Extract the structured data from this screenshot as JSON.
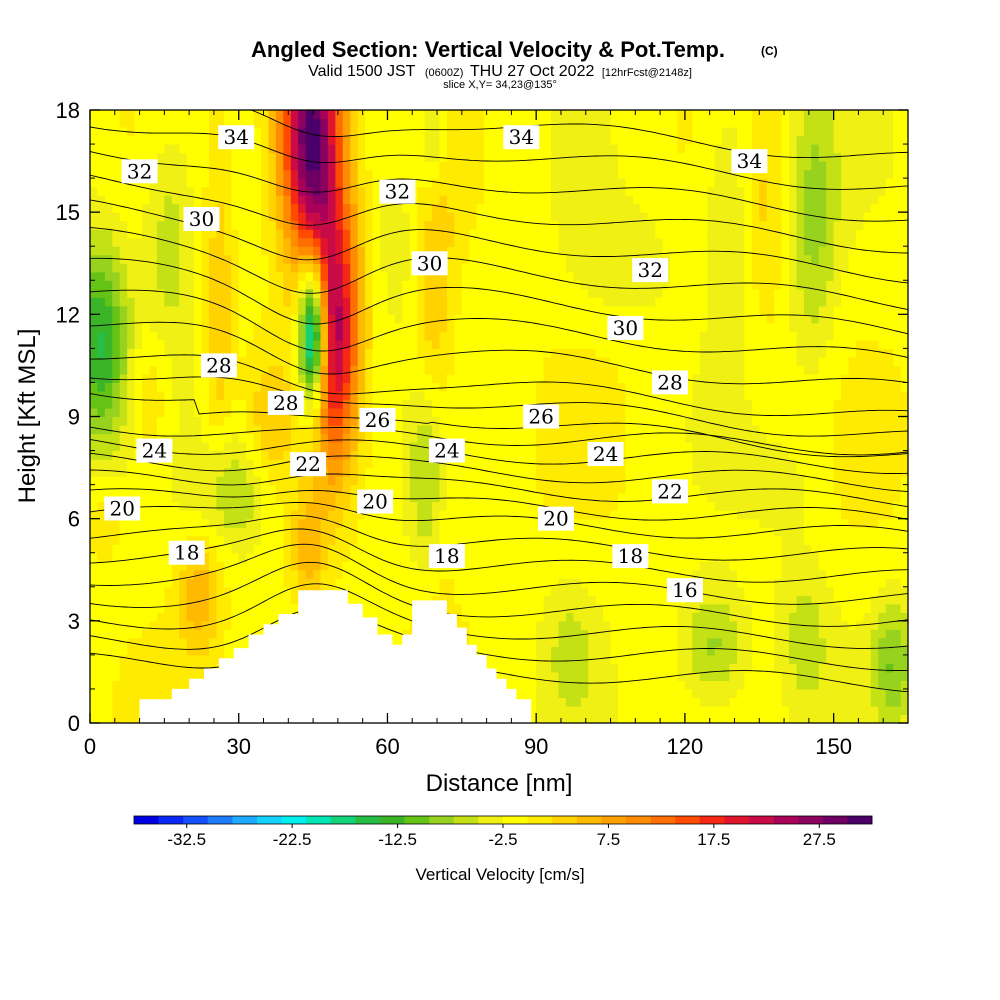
{
  "chart_data": {
    "type": "heatmap",
    "title": "Angled Section: Vertical Velocity & Pot.Temp.",
    "title_mark": "(C)",
    "subtitle": {
      "valid": "Valid 1500 JST",
      "utc": "(0600Z)",
      "date": "THU 27 Oct 2022",
      "forecast": "[12hrFcst@2148z]"
    },
    "slice_label": "slice X,Y= 34,23@135°",
    "xlabel": "Distance [nm]",
    "ylabel": "Height [Kft MSL]",
    "xlim": [
      0,
      165
    ],
    "ylim": [
      0,
      18
    ],
    "xticks": [
      "0",
      "30",
      "60",
      "90",
      "120",
      "150"
    ],
    "yticks": [
      "0",
      "3",
      "6",
      "9",
      "12",
      "15",
      "18"
    ],
    "colorbar": {
      "label": "Vertical Velocity [cm/s]",
      "tick_labels": [
        "-32.5",
        "-22.5",
        "-12.5",
        "-2.5",
        "7.5",
        "17.5",
        "27.5"
      ],
      "min": -37.5,
      "max": 32.5,
      "step": 2.5,
      "colors": [
        "#0000e6",
        "#0a28f5",
        "#1450ff",
        "#1e7dff",
        "#1eaaff",
        "#14d2ff",
        "#00f0f0",
        "#00e6b4",
        "#14d278",
        "#28be46",
        "#3cb428",
        "#64c314",
        "#96d21e",
        "#c3e114",
        "#f0f014",
        "#ffff00",
        "#ffeb00",
        "#ffd200",
        "#ffb900",
        "#ffa000",
        "#ff8c00",
        "#ff6e00",
        "#ff4b00",
        "#f52814",
        "#e1142d",
        "#c80a46",
        "#aa005a",
        "#8c005f",
        "#6e0064",
        "#4b0069"
      ]
    },
    "theta_contour_labels": [
      {
        "text": "34",
        "x": 29.5,
        "y": 17.2
      },
      {
        "text": "34",
        "x": 87,
        "y": 17.2
      },
      {
        "text": "34",
        "x": 133,
        "y": 16.5
      },
      {
        "text": "32",
        "x": 10,
        "y": 16.2
      },
      {
        "text": "32",
        "x": 62,
        "y": 15.6
      },
      {
        "text": "32",
        "x": 113,
        "y": 13.3
      },
      {
        "text": "30",
        "x": 22.5,
        "y": 14.8
      },
      {
        "text": "30",
        "x": 68.5,
        "y": 13.5
      },
      {
        "text": "30",
        "x": 108,
        "y": 11.6
      },
      {
        "text": "28",
        "x": 26,
        "y": 10.5
      },
      {
        "text": "28",
        "x": 39.5,
        "y": 9.4
      },
      {
        "text": "28",
        "x": 117,
        "y": 10.0
      },
      {
        "text": "26",
        "x": 58,
        "y": 8.9
      },
      {
        "text": "26",
        "x": 91,
        "y": 9.0
      },
      {
        "text": "24",
        "x": 13,
        "y": 8.0
      },
      {
        "text": "24",
        "x": 72,
        "y": 8.0
      },
      {
        "text": "24",
        "x": 104,
        "y": 7.9
      },
      {
        "text": "22",
        "x": 44,
        "y": 7.6
      },
      {
        "text": "22",
        "x": 117,
        "y": 6.8
      },
      {
        "text": "20",
        "x": 6.5,
        "y": 6.3
      },
      {
        "text": "20",
        "x": 57.5,
        "y": 6.5
      },
      {
        "text": "20",
        "x": 94,
        "y": 6.0
      },
      {
        "text": "18",
        "x": 19.5,
        "y": 5.0
      },
      {
        "text": "18",
        "x": 72,
        "y": 4.9
      },
      {
        "text": "18",
        "x": 109,
        "y": 4.9
      },
      {
        "text": "16",
        "x": 120,
        "y": 3.9
      }
    ],
    "terrain": [
      [
        0,
        0
      ],
      [
        10,
        0
      ],
      [
        10,
        0.7
      ],
      [
        16.5,
        0.7
      ],
      [
        16.5,
        1
      ],
      [
        20,
        1
      ],
      [
        20,
        1.3
      ],
      [
        23,
        1.3
      ],
      [
        23,
        1.6
      ],
      [
        26,
        1.6
      ],
      [
        26,
        1.9
      ],
      [
        29,
        1.9
      ],
      [
        29,
        2.2
      ],
      [
        32,
        2.2
      ],
      [
        32,
        2.6
      ],
      [
        35,
        2.6
      ],
      [
        35,
        2.9
      ],
      [
        38,
        2.9
      ],
      [
        38,
        3.2
      ],
      [
        42,
        3.2
      ],
      [
        42,
        3.9
      ],
      [
        52,
        3.9
      ],
      [
        52,
        3.5
      ],
      [
        55,
        3.5
      ],
      [
        55,
        3.1
      ],
      [
        58,
        3.1
      ],
      [
        58,
        2.6
      ],
      [
        61,
        2.6
      ],
      [
        61,
        2.3
      ],
      [
        63,
        2.3
      ],
      [
        63,
        2.6
      ],
      [
        65,
        2.6
      ],
      [
        65,
        3.6
      ],
      [
        72,
        3.6
      ],
      [
        72,
        3.2
      ],
      [
        74,
        3.2
      ],
      [
        74,
        2.8
      ],
      [
        76,
        2.8
      ],
      [
        76,
        2.3
      ],
      [
        78,
        2.3
      ],
      [
        78,
        2.0
      ],
      [
        80,
        2.0
      ],
      [
        80,
        1.6
      ],
      [
        82,
        1.6
      ],
      [
        82,
        1.3
      ],
      [
        84,
        1.3
      ],
      [
        84,
        1.0
      ],
      [
        86,
        1.0
      ],
      [
        86,
        0.7
      ],
      [
        89,
        0.7
      ],
      [
        89,
        0
      ],
      [
        0,
        0
      ]
    ],
    "w_field": {
      "background": 1.5,
      "features": [
        {
          "x": 45,
          "y": 11.5,
          "sx": 2.0,
          "sy": 1.6,
          "w": -34
        },
        {
          "x": 44,
          "y": 17.5,
          "sx": 4.5,
          "sy": 2.5,
          "w": 28
        },
        {
          "x": 46,
          "y": 15,
          "sx": 3.5,
          "sy": 3.5,
          "w": 12
        },
        {
          "x": 49,
          "y": 11,
          "sx": 3,
          "sy": 2.6,
          "w": 18
        },
        {
          "x": 52,
          "y": 12.3,
          "sx": 3,
          "sy": 2.5,
          "w": 8
        },
        {
          "x": 2,
          "y": 11.2,
          "sx": 4,
          "sy": 2.2,
          "w": -14
        },
        {
          "x": 30,
          "y": 6.8,
          "sx": 5.5,
          "sy": 1.2,
          "w": -7
        },
        {
          "x": 68,
          "y": 7.3,
          "sx": 2.5,
          "sy": 2.2,
          "w": -10
        },
        {
          "x": 69,
          "y": 11.5,
          "sx": 3,
          "sy": 6,
          "w": 7
        },
        {
          "x": 69,
          "y": 17.5,
          "sx": 2,
          "sy": 1.5,
          "w": -10
        },
        {
          "x": 63,
          "y": 14.5,
          "sx": 4,
          "sy": 2,
          "w": -4
        },
        {
          "x": 16,
          "y": 14.5,
          "sx": 4,
          "sy": 2.5,
          "w": -6
        },
        {
          "x": 26,
          "y": 12,
          "sx": 2,
          "sy": 3,
          "w": 6
        },
        {
          "x": 12,
          "y": 9.5,
          "sx": 3,
          "sy": 1.5,
          "w": 5
        },
        {
          "x": 22,
          "y": 3.8,
          "sx": 3,
          "sy": 1.2,
          "w": 8
        },
        {
          "x": 44,
          "y": 5,
          "sx": 2.5,
          "sy": 1.2,
          "w": 7
        },
        {
          "x": 126,
          "y": 2.2,
          "sx": 5,
          "sy": 1.3,
          "w": -8
        },
        {
          "x": 144,
          "y": 2.5,
          "sx": 4,
          "sy": 1.8,
          "w": -5
        },
        {
          "x": 162,
          "y": 1.8,
          "sx": 3,
          "sy": 1.3,
          "w": -8
        },
        {
          "x": 129,
          "y": 15.5,
          "sx": 4,
          "sy": 2.5,
          "w": -5
        },
        {
          "x": 146,
          "y": 14.8,
          "sx": 3.5,
          "sy": 3,
          "w": -7
        },
        {
          "x": 136,
          "y": 15,
          "sx": 3,
          "sy": 2.5,
          "w": 4
        },
        {
          "x": 97,
          "y": 2.2,
          "sx": 4,
          "sy": 1.5,
          "w": -4
        },
        {
          "x": 108,
          "y": 13.5,
          "sx": 8,
          "sy": 1.2,
          "w": -3
        },
        {
          "x": 140,
          "y": 7,
          "sx": 5,
          "sy": 1,
          "w": -2
        },
        {
          "x": 36,
          "y": 8.5,
          "sx": 3,
          "sy": 1.5,
          "w": 5
        },
        {
          "x": 3,
          "y": 6,
          "sx": 3,
          "sy": 1,
          "w": 3
        }
      ]
    }
  }
}
